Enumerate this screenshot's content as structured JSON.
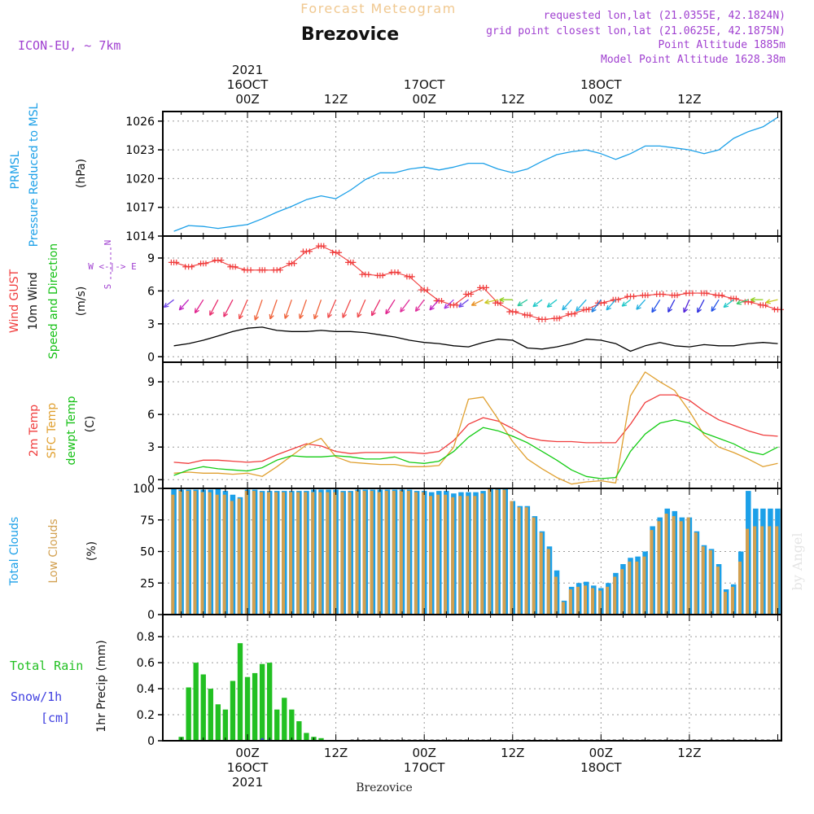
{
  "header": {
    "title": "Forecast Meteogram",
    "location": "Brezovice",
    "model": "ICON-EU, ~ 7km",
    "requested": "requested lon,lat (21.0355E, 42.1824N)",
    "gridpoint": "grid point closest lon,lat (21.0625E, 42.1875N)",
    "altitude": "Point Altitude 1885m",
    "model_altitude": "Model Point Altitude 1628.38m",
    "watermark": "by Angel",
    "bottom_label": "Brezovice"
  },
  "colors": {
    "pressure": "#1ca0e8",
    "gust": "#f03c3c",
    "wind": "#000000",
    "temp2m": "#f03c3c",
    "sfc": "#e0a030",
    "dewpt": "#14cc14",
    "total_clouds": "#1ca0e8",
    "low_clouds": "#d2a050",
    "rain": "#22c022",
    "snow": "#4040e0",
    "label_purple": "#a040d0"
  },
  "time_axis": {
    "top": [
      {
        "label": "00Z",
        "day": "16OCT",
        "year": "2021"
      },
      {
        "label": "12Z"
      },
      {
        "label": "00Z",
        "day": "17OCT"
      },
      {
        "label": "12Z"
      },
      {
        "label": "00Z",
        "day": "18OCT"
      },
      {
        "label": "12Z"
      }
    ],
    "bottom": [
      {
        "label": "00Z",
        "day": "16OCT",
        "year": "2021"
      },
      {
        "label": "12Z"
      },
      {
        "label": "00Z",
        "day": "17OCT"
      },
      {
        "label": "12Z"
      },
      {
        "label": "00Z",
        "day": "18OCT"
      },
      {
        "label": "12Z"
      }
    ]
  },
  "labels": {
    "p1_a": "PRMSL",
    "p1_b": "Pressure Reduced to MSL",
    "p1_unit": "(hPa)",
    "p2_a": "Wind GUST",
    "p2_b": "10m Wind",
    "p2_c": "Speed and Direction",
    "p2_unit": "(m/s)",
    "compass_we": "W <-|-> E",
    "compass_n": "N",
    "compass_s": "S",
    "p3_a": "2m Temp",
    "p3_b": "SFC Temp",
    "p3_c": "dewpt Temp",
    "p3_unit": "(C)",
    "p4_a": "Total Clouds",
    "p4_b": "Low Clouds",
    "p4_unit": "(%)",
    "p5_a": "Total  Rain",
    "p5_b": "Snow/1h",
    "p5_c": "[cm]",
    "p5_unit": "1hr Precip (mm)"
  },
  "chart_data": [
    {
      "type": "line",
      "x_unit": "hours since 00Z 16OCT 2021",
      "yticks": [
        1014,
        1017,
        1020,
        1023,
        1026
      ],
      "ylim": [
        1014,
        1027
      ],
      "grid": true,
      "series": [
        {
          "x": [
            -10,
            -8,
            -6,
            -4,
            -2,
            0,
            2,
            4,
            6,
            8,
            10,
            12,
            14,
            16,
            18,
            20,
            22,
            24,
            26,
            28,
            30,
            32,
            34,
            36,
            38,
            40,
            42,
            44,
            46,
            48,
            50,
            52,
            54,
            56,
            58,
            60,
            62,
            64,
            66,
            68,
            70,
            72
          ],
          "y": [
            1014.5,
            1015.1,
            1015.0,
            1014.8,
            1015.0,
            1015.2,
            1015.8,
            1016.5,
            1017.1,
            1017.8,
            1018.2,
            1017.9,
            1018.8,
            1019.9,
            1020.6,
            1020.6,
            1021.0,
            1021.2,
            1020.9,
            1021.2,
            1021.6,
            1021.6,
            1021.0,
            1020.6,
            1021.0,
            1021.8,
            1022.5,
            1022.8,
            1023.0,
            1022.6,
            1022.0,
            1022.6,
            1023.4,
            1023.4,
            1023.2,
            1023.0,
            1022.6,
            1023.0,
            1024.2,
            1024.9,
            1025.4,
            1026.4
          ]
        }
      ]
    },
    {
      "type": "line",
      "yticks": [
        0,
        3,
        6,
        9
      ],
      "ylim": [
        -0.5,
        11
      ],
      "grid": true,
      "series": [
        {
          "name": "Wind GUST",
          "x": [
            -10,
            -8,
            -6,
            -4,
            -2,
            0,
            2,
            4,
            6,
            8,
            10,
            12,
            14,
            16,
            18,
            20,
            22,
            24,
            26,
            28,
            30,
            32,
            34,
            36,
            38,
            40,
            42,
            44,
            46,
            48,
            50,
            52,
            54,
            56,
            58,
            60,
            62,
            64,
            66,
            68,
            70,
            72
          ],
          "y": [
            8.6,
            8.2,
            8.5,
            8.8,
            8.2,
            7.9,
            7.9,
            7.9,
            8.5,
            9.6,
            10.1,
            9.5,
            8.6,
            7.5,
            7.4,
            7.7,
            7.3,
            6.1,
            5.1,
            4.7,
            5.7,
            6.3,
            4.9,
            4.1,
            3.8,
            3.4,
            3.5,
            3.9,
            4.3,
            4.9,
            5.2,
            5.5,
            5.6,
            5.7,
            5.6,
            5.8,
            5.8,
            5.6,
            5.3,
            5.0,
            4.7,
            4.3
          ]
        },
        {
          "name": "10m Wind",
          "x": [
            -10,
            -8,
            -6,
            -4,
            -2,
            0,
            2,
            4,
            6,
            8,
            10,
            12,
            14,
            16,
            18,
            20,
            22,
            24,
            26,
            28,
            30,
            32,
            34,
            36,
            38,
            40,
            42,
            44,
            46,
            48,
            50,
            52,
            54,
            56,
            58,
            60,
            62,
            64,
            66,
            68,
            70,
            72
          ],
          "y": [
            1.0,
            1.2,
            1.5,
            1.9,
            2.3,
            2.6,
            2.7,
            2.4,
            2.3,
            2.3,
            2.4,
            2.3,
            2.3,
            2.2,
            2.0,
            1.8,
            1.5,
            1.3,
            1.2,
            1.0,
            0.9,
            1.3,
            1.6,
            1.5,
            0.8,
            0.7,
            0.9,
            1.2,
            1.6,
            1.5,
            1.2,
            0.5,
            1.0,
            1.3,
            1.0,
            0.9,
            1.1,
            1.0,
            1.0,
            1.2,
            1.3,
            1.2
          ]
        }
      ],
      "wind_dir_deg": [
        300,
        310,
        320,
        325,
        325,
        330,
        335,
        335,
        335,
        335,
        335,
        330,
        330,
        330,
        325,
        320,
        315,
        315,
        310,
        305,
        300,
        290,
        280,
        270,
        245,
        240,
        240,
        230,
        230,
        225,
        230,
        240,
        230,
        220,
        215,
        210,
        215,
        220,
        240,
        255,
        270,
        280
      ]
    },
    {
      "type": "line",
      "yticks": [
        0,
        3,
        6,
        9
      ],
      "ylim": [
        -0.8,
        10.8
      ],
      "grid": true,
      "series": [
        {
          "name": "2m Temp",
          "x": [
            -10,
            -8,
            -6,
            -4,
            -2,
            0,
            2,
            4,
            6,
            8,
            10,
            12,
            14,
            16,
            18,
            20,
            22,
            24,
            26,
            28,
            30,
            32,
            34,
            36,
            38,
            40,
            42,
            44,
            46,
            48,
            50,
            52,
            54,
            56,
            58,
            60,
            62,
            64,
            66,
            68,
            70,
            72
          ],
          "y": [
            1.6,
            1.5,
            1.8,
            1.8,
            1.7,
            1.6,
            1.7,
            2.3,
            2.8,
            3.3,
            3.1,
            2.6,
            2.4,
            2.5,
            2.5,
            2.5,
            2.5,
            2.4,
            2.6,
            3.6,
            5.1,
            5.7,
            5.4,
            4.7,
            3.9,
            3.6,
            3.5,
            3.5,
            3.4,
            3.4,
            3.4,
            5.1,
            7.1,
            7.8,
            7.8,
            7.3,
            6.3,
            5.5,
            5.0,
            4.5,
            4.1,
            4.0
          ]
        },
        {
          "name": "SFC Temp",
          "x": [
            -10,
            -8,
            -6,
            -4,
            -2,
            0,
            2,
            4,
            6,
            8,
            10,
            12,
            14,
            16,
            18,
            20,
            22,
            24,
            26,
            28,
            30,
            32,
            34,
            36,
            38,
            40,
            42,
            44,
            46,
            48,
            50,
            52,
            54,
            56,
            58,
            60,
            62,
            64,
            66,
            68,
            70,
            72
          ],
          "y": [
            0.6,
            0.7,
            0.6,
            0.6,
            0.5,
            0.6,
            0.3,
            1.2,
            2.2,
            3.2,
            3.8,
            2.1,
            1.6,
            1.5,
            1.4,
            1.4,
            1.2,
            1.2,
            1.3,
            3.0,
            7.4,
            7.6,
            5.6,
            3.5,
            1.9,
            1.0,
            0.2,
            -0.4,
            -0.2,
            -0.1,
            -0.3,
            7.7,
            9.9,
            9.0,
            8.2,
            6.3,
            4.1,
            3.0,
            2.5,
            1.9,
            1.2,
            1.5
          ]
        },
        {
          "name": "dewpt Temp",
          "x": [
            -10,
            -8,
            -6,
            -4,
            -2,
            0,
            2,
            4,
            6,
            8,
            10,
            12,
            14,
            16,
            18,
            20,
            22,
            24,
            26,
            28,
            30,
            32,
            34,
            36,
            38,
            40,
            42,
            44,
            46,
            48,
            50,
            52,
            54,
            56,
            58,
            60,
            62,
            64,
            66,
            68,
            70,
            72
          ],
          "y": [
            0.4,
            0.9,
            1.2,
            1.0,
            0.9,
            0.8,
            1.1,
            1.8,
            2.2,
            2.1,
            2.1,
            2.2,
            2.1,
            1.9,
            1.9,
            2.1,
            1.6,
            1.5,
            1.7,
            2.6,
            3.9,
            4.8,
            4.5,
            4.0,
            3.4,
            2.6,
            1.8,
            0.9,
            0.3,
            0.1,
            0.2,
            2.6,
            4.2,
            5.2,
            5.5,
            5.2,
            4.3,
            3.8,
            3.3,
            2.6,
            2.3,
            3.0
          ]
        }
      ]
    },
    {
      "type": "bar",
      "yticks": [
        0,
        25,
        50,
        75,
        100
      ],
      "ylim": [
        0,
        100
      ],
      "grid": true,
      "series": [
        {
          "name": "Total Clouds",
          "x": [
            -10,
            -9,
            -8,
            -7,
            -6,
            -5,
            -4,
            -3,
            -2,
            -1,
            0,
            1,
            2,
            3,
            4,
            5,
            6,
            7,
            8,
            9,
            10,
            11,
            12,
            13,
            14,
            15,
            16,
            17,
            18,
            19,
            20,
            21,
            22,
            23,
            24,
            25,
            26,
            27,
            28,
            29,
            30,
            31,
            32,
            33,
            34,
            35,
            36,
            37,
            38,
            39,
            40,
            41,
            42,
            43,
            44,
            45,
            46,
            47,
            48,
            49,
            50,
            51,
            52,
            53,
            54,
            55,
            56,
            57,
            58,
            59,
            60,
            61,
            62,
            63,
            64,
            65,
            66,
            67,
            68,
            69,
            70,
            71,
            72
          ],
          "values": [
            100,
            99,
            99,
            99,
            99,
            99,
            100,
            98,
            95,
            93,
            99,
            99,
            98,
            98,
            98,
            98,
            98,
            98,
            98,
            99,
            99,
            99,
            99,
            98,
            98,
            99,
            99,
            99,
            99,
            99,
            99,
            99,
            99,
            98,
            98,
            97,
            98,
            98,
            96,
            97,
            97,
            97,
            98,
            100,
            100,
            100,
            90,
            86,
            86,
            78,
            66,
            54,
            35,
            11,
            22,
            25,
            26,
            23,
            21,
            25,
            33,
            40,
            45,
            46,
            50,
            70,
            77,
            84,
            82,
            77,
            77,
            66,
            55,
            52,
            40,
            20,
            24,
            50,
            98,
            84,
            84,
            84,
            84
          ]
        },
        {
          "name": "Low Clouds",
          "values": [
            95,
            98,
            98,
            98,
            97,
            97,
            95,
            95,
            90,
            92,
            98,
            98,
            97,
            97,
            97,
            97,
            97,
            97,
            97,
            97,
            97,
            97,
            97,
            97,
            97,
            98,
            98,
            98,
            97,
            98,
            98,
            98,
            98,
            97,
            97,
            94,
            95,
            95,
            93,
            94,
            94,
            94,
            96,
            100,
            99,
            99,
            90,
            85,
            85,
            77,
            65,
            52,
            30,
            10,
            20,
            22,
            23,
            21,
            19,
            22,
            30,
            36,
            42,
            42,
            46,
            67,
            74,
            80,
            78,
            74,
            77,
            65,
            54,
            51,
            38,
            18,
            22,
            42,
            68,
            70,
            70,
            70,
            70
          ]
        }
      ]
    },
    {
      "type": "bar",
      "yticks": [
        0,
        0.2,
        0.4,
        0.6,
        0.8
      ],
      "ylim": [
        0,
        0.97
      ],
      "grid": true,
      "series": [
        {
          "name": "Total Rain",
          "x": [
            -9,
            -8,
            -7,
            -6,
            -5,
            -4,
            -3,
            -2,
            -1,
            0,
            1,
            2,
            3,
            4,
            5,
            6,
            7,
            8,
            9,
            10,
            11,
            12,
            13,
            14
          ],
          "values": [
            0.03,
            0.41,
            0.6,
            0.51,
            0.4,
            0.28,
            0.24,
            0.46,
            0.75,
            0.49,
            0.52,
            0.59,
            0.6,
            0.24,
            0.33,
            0.24,
            0.15,
            0.06,
            0.03,
            0.02,
            0,
            0,
            0,
            0
          ]
        },
        {
          "name": "Snow/1h",
          "x": [
            2,
            3
          ],
          "values": [
            0.02,
            0.01
          ]
        }
      ]
    }
  ]
}
